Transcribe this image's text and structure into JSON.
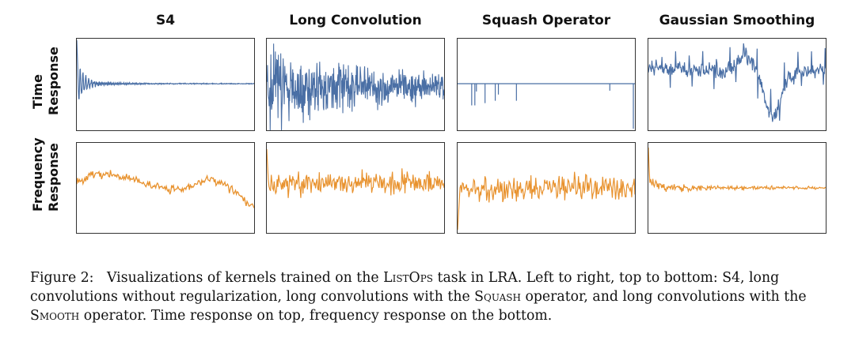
{
  "figure": {
    "columns": [
      "S4",
      "Long Convolution",
      "Squash Operator",
      "Gaussian Smoothing"
    ],
    "rows": [
      [
        "Time",
        "Response"
      ],
      [
        "Frequency",
        "Response"
      ]
    ],
    "colors": {
      "time": "#4a6fa5",
      "frequency": "#e8922e",
      "frame": "#333333"
    }
  },
  "caption": {
    "label": "Figure 2:",
    "part1": "Visualizations of kernels trained on the ",
    "listops": "ListOps",
    "part2": " task in LRA. Left to right, top to bottom: S4, long convolutions without regularization, long convolutions with the ",
    "squash": "Squash",
    "part3": " operator, and long convolutions with the ",
    "smooth": "Smooth",
    "part4": " operator. Time response on top, frequency response on the bottom."
  }
}
